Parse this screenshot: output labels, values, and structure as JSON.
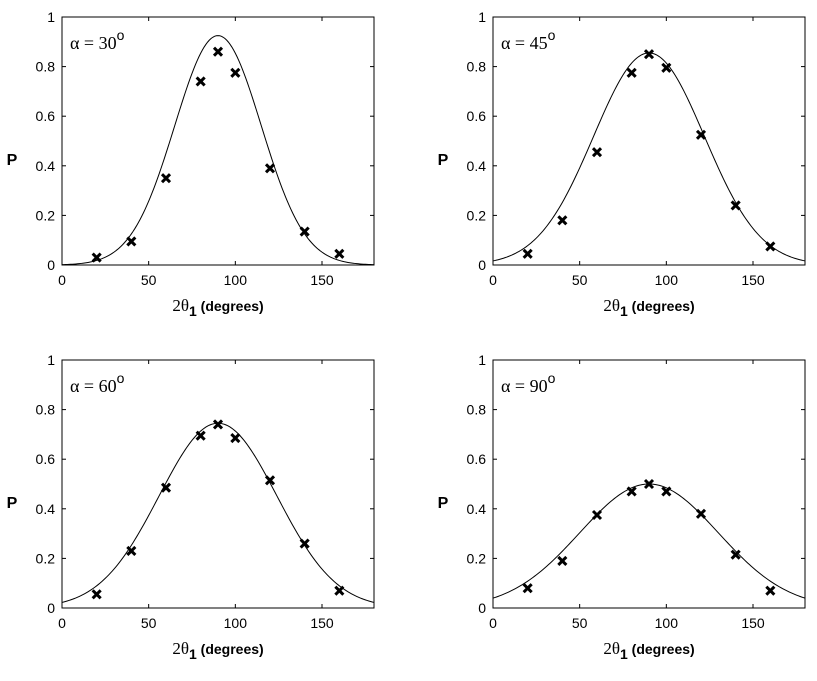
{
  "chart_data": [
    {
      "type": "scatter",
      "annotation": "α = 30",
      "annotation_sup": "o",
      "ylabel": "P",
      "xlabel_symbol": "2θ",
      "xlabel_sub": "1",
      "xlabel_unit": "(degrees)",
      "xlim": [
        0,
        180
      ],
      "ylim": [
        0,
        1
      ],
      "xticks": [
        0,
        50,
        100,
        150
      ],
      "yticks": [
        0,
        0.2,
        0.4,
        0.6,
        0.8,
        1
      ],
      "grid": false,
      "series": [
        {
          "kind": "points",
          "marker": "x",
          "x": [
            20,
            40,
            60,
            80,
            90,
            100,
            120,
            140,
            160
          ],
          "y": [
            0.03,
            0.095,
            0.35,
            0.74,
            0.86,
            0.775,
            0.39,
            0.135,
            0.045
          ]
        },
        {
          "kind": "curve",
          "peak": 0.925,
          "sigma": 25
        }
      ]
    },
    {
      "type": "scatter",
      "annotation": "α = 45",
      "annotation_sup": "o",
      "ylabel": "P",
      "xlabel_symbol": "2θ",
      "xlabel_sub": "1",
      "xlabel_unit": "(degrees)",
      "xlim": [
        0,
        180
      ],
      "ylim": [
        0,
        1
      ],
      "xticks": [
        0,
        50,
        100,
        150
      ],
      "yticks": [
        0,
        0.2,
        0.4,
        0.6,
        0.8,
        1
      ],
      "grid": false,
      "series": [
        {
          "kind": "points",
          "marker": "x",
          "x": [
            20,
            40,
            60,
            80,
            90,
            100,
            120,
            140,
            160
          ],
          "y": [
            0.045,
            0.18,
            0.455,
            0.775,
            0.85,
            0.795,
            0.525,
            0.24,
            0.075
          ]
        },
        {
          "kind": "curve",
          "peak": 0.855,
          "sigma": 32
        }
      ]
    },
    {
      "type": "scatter",
      "annotation": "α = 60",
      "annotation_sup": "o",
      "ylabel": "P",
      "xlabel_symbol": "2θ",
      "xlabel_sub": "1",
      "xlabel_unit": "(degrees)",
      "xlim": [
        0,
        180
      ],
      "ylim": [
        0,
        1
      ],
      "xticks": [
        0,
        50,
        100,
        150
      ],
      "yticks": [
        0,
        0.2,
        0.4,
        0.6,
        0.8,
        1
      ],
      "grid": false,
      "series": [
        {
          "kind": "points",
          "marker": "x",
          "x": [
            20,
            40,
            60,
            80,
            90,
            100,
            120,
            140,
            160
          ],
          "y": [
            0.055,
            0.23,
            0.485,
            0.695,
            0.74,
            0.685,
            0.515,
            0.26,
            0.07
          ]
        },
        {
          "kind": "curve",
          "peak": 0.745,
          "sigma": 34
        }
      ]
    },
    {
      "type": "scatter",
      "annotation": "α = 90",
      "annotation_sup": "o",
      "ylabel": "P",
      "xlabel_symbol": "2θ",
      "xlabel_sub": "1",
      "xlabel_unit": "(degrees)",
      "xlim": [
        0,
        180
      ],
      "ylim": [
        0,
        1
      ],
      "xticks": [
        0,
        50,
        100,
        150
      ],
      "yticks": [
        0,
        0.2,
        0.4,
        0.6,
        0.8,
        1
      ],
      "grid": false,
      "series": [
        {
          "kind": "points",
          "marker": "x",
          "x": [
            20,
            40,
            60,
            80,
            90,
            100,
            120,
            140,
            160
          ],
          "y": [
            0.08,
            0.19,
            0.375,
            0.47,
            0.5,
            0.47,
            0.38,
            0.215,
            0.07
          ]
        },
        {
          "kind": "curve",
          "peak": 0.5,
          "sigma": 40
        }
      ]
    }
  ]
}
